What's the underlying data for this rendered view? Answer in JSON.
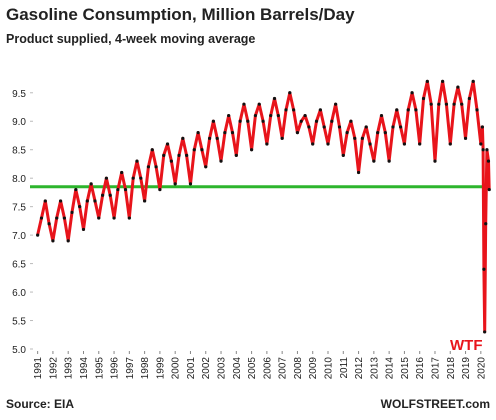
{
  "chart_data": {
    "type": "line",
    "title": "Gasoline Consumption, Million Barrels/Day",
    "subtitle": "Product supplied, 4-week moving average",
    "source": "Source: EIA",
    "credit": "WOLFSTREET.com",
    "annotation": "WTF",
    "color": "#e8141b",
    "marker_color": "#111111",
    "reference_line": {
      "value": 7.85,
      "color": "#2db52d"
    },
    "grid": false,
    "xlim": [
      1990.5,
      2020.6
    ],
    "ylim": [
      5.0,
      9.9
    ],
    "xticks": [
      1991,
      1992,
      1993,
      1994,
      1995,
      1996,
      1997,
      1998,
      1999,
      2000,
      2001,
      2002,
      2003,
      2004,
      2005,
      2006,
      2007,
      2008,
      2009,
      2010,
      2011,
      2012,
      2013,
      2014,
      2015,
      2016,
      2017,
      2018,
      2019,
      2020
    ],
    "yticks": [
      {
        "value": 5,
        "label": "5.0"
      },
      5.5,
      {
        "value": 6,
        "label": "6.0"
      },
      6.5,
      {
        "value": 7,
        "label": "7.0"
      },
      7.5,
      {
        "value": 8,
        "label": "8.0"
      },
      8.5,
      {
        "value": 9,
        "label": "9.0"
      },
      9.5
    ],
    "x": [
      1991,
      1991.25,
      1991.5,
      1991.75,
      1992,
      1992.25,
      1992.5,
      1992.75,
      1993,
      1993.25,
      1993.5,
      1993.75,
      1994,
      1994.25,
      1994.5,
      1994.75,
      1995,
      1995.25,
      1995.5,
      1995.75,
      1996,
      1996.25,
      1996.5,
      1996.75,
      1997,
      1997.25,
      1997.5,
      1997.75,
      1998,
      1998.25,
      1998.5,
      1998.75,
      1999,
      1999.25,
      1999.5,
      1999.75,
      2000,
      2000.25,
      2000.5,
      2000.75,
      2001,
      2001.25,
      2001.5,
      2001.75,
      2002,
      2002.25,
      2002.5,
      2002.75,
      2003,
      2003.25,
      2003.5,
      2003.75,
      2004,
      2004.25,
      2004.5,
      2004.75,
      2005,
      2005.25,
      2005.5,
      2005.75,
      2006,
      2006.25,
      2006.5,
      2006.75,
      2007,
      2007.25,
      2007.5,
      2007.75,
      2008,
      2008.25,
      2008.5,
      2008.75,
      2009,
      2009.25,
      2009.5,
      2009.75,
      2010,
      2010.25,
      2010.5,
      2010.75,
      2011,
      2011.25,
      2011.5,
      2011.75,
      2012,
      2012.25,
      2012.5,
      2012.75,
      2013,
      2013.25,
      2013.5,
      2013.75,
      2014,
      2014.25,
      2014.5,
      2014.75,
      2015,
      2015.25,
      2015.5,
      2015.75,
      2016,
      2016.25,
      2016.5,
      2016.75,
      2017,
      2017.25,
      2017.5,
      2017.75,
      2018,
      2018.25,
      2018.5,
      2018.75,
      2019,
      2019.25,
      2019.5,
      2019.75,
      2020,
      2020.1,
      2020.15,
      2020.2,
      2020.25,
      2020.32,
      2020.4,
      2020.5,
      2020.55
    ],
    "values": [
      7.0,
      7.3,
      7.6,
      7.2,
      6.9,
      7.3,
      7.6,
      7.3,
      6.9,
      7.4,
      7.8,
      7.5,
      7.1,
      7.6,
      7.9,
      7.6,
      7.3,
      7.7,
      8.0,
      7.7,
      7.3,
      7.8,
      8.1,
      7.8,
      7.3,
      8.0,
      8.3,
      8.0,
      7.6,
      8.2,
      8.5,
      8.2,
      7.8,
      8.4,
      8.6,
      8.3,
      7.9,
      8.4,
      8.7,
      8.4,
      7.9,
      8.5,
      8.8,
      8.5,
      8.2,
      8.7,
      9.0,
      8.7,
      8.3,
      8.8,
      9.1,
      8.8,
      8.4,
      9.0,
      9.3,
      9.0,
      8.5,
      9.1,
      9.3,
      9.0,
      8.6,
      9.1,
      9.4,
      9.1,
      8.7,
      9.2,
      9.5,
      9.2,
      8.8,
      9.0,
      9.1,
      8.9,
      8.6,
      9.0,
      9.2,
      8.9,
      8.6,
      9.0,
      9.3,
      8.9,
      8.4,
      8.8,
      9.0,
      8.7,
      8.1,
      8.7,
      8.9,
      8.6,
      8.3,
      8.8,
      9.1,
      8.8,
      8.3,
      8.9,
      9.2,
      8.9,
      8.6,
      9.2,
      9.5,
      9.2,
      8.6,
      9.4,
      9.7,
      9.3,
      8.3,
      9.3,
      9.7,
      9.3,
      8.6,
      9.3,
      9.6,
      9.3,
      8.7,
      9.4,
      9.7,
      9.2,
      8.6,
      8.9,
      8.5,
      6.4,
      5.3,
      7.2,
      8.5,
      8.3,
      7.8
    ]
  }
}
